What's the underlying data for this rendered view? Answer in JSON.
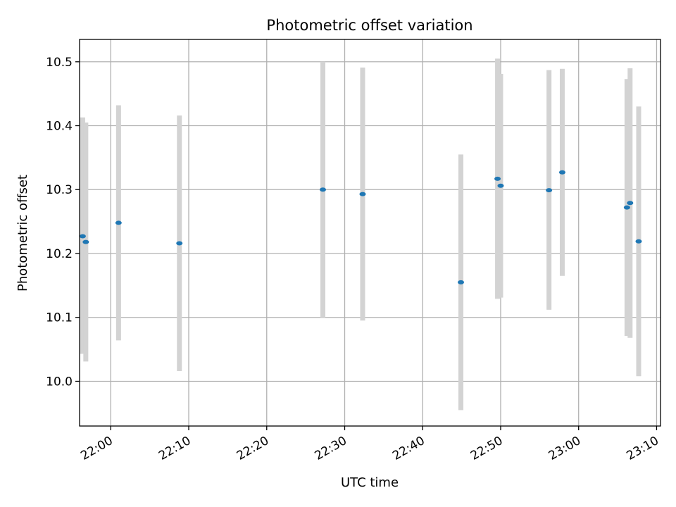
{
  "chart_data": {
    "type": "scatter",
    "title": "Photometric offset variation",
    "xlabel": "UTC time",
    "ylabel": "Photometric offset",
    "grid": true,
    "colors": {
      "marker": "#1f77b4",
      "errorbar": "#d3d3d3",
      "grid": "#b0b0b0"
    },
    "xlim": [
      "21:56.0",
      "23:10.5"
    ],
    "ylim": [
      9.93,
      10.535
    ],
    "x_ticks": [
      "22:00",
      "22:10",
      "22:20",
      "22:30",
      "22:40",
      "22:50",
      "23:00",
      "23:10"
    ],
    "y_ticks": [
      "10.0",
      "10.1",
      "10.2",
      "10.3",
      "10.4",
      "10.5"
    ],
    "points": [
      {
        "time": "21:56.4",
        "value": 10.227,
        "lower": 10.043,
        "upper": 10.413
      },
      {
        "time": "21:56.8",
        "value": 10.218,
        "lower": 10.031,
        "upper": 10.405
      },
      {
        "time": "22:01.0",
        "value": 10.248,
        "lower": 10.064,
        "upper": 10.432
      },
      {
        "time": "22:08.8",
        "value": 10.216,
        "lower": 10.016,
        "upper": 10.416
      },
      {
        "time": "22:27.2",
        "value": 10.3,
        "lower": 10.1,
        "upper": 10.5
      },
      {
        "time": "22:32.3",
        "value": 10.293,
        "lower": 10.095,
        "upper": 10.491
      },
      {
        "time": "22:44.9",
        "value": 10.155,
        "lower": 9.955,
        "upper": 10.355
      },
      {
        "time": "22:49.6",
        "value": 10.317,
        "lower": 10.129,
        "upper": 10.505
      },
      {
        "time": "22:50.0",
        "value": 10.306,
        "lower": 10.131,
        "upper": 10.481
      },
      {
        "time": "22:56.2",
        "value": 10.299,
        "lower": 10.112,
        "upper": 10.487
      },
      {
        "time": "22:57.9",
        "value": 10.327,
        "lower": 10.165,
        "upper": 10.489
      },
      {
        "time": "23:06.2",
        "value": 10.272,
        "lower": 10.071,
        "upper": 10.473
      },
      {
        "time": "23:06.6",
        "value": 10.279,
        "lower": 10.068,
        "upper": 10.49
      },
      {
        "time": "23:07.7",
        "value": 10.219,
        "lower": 10.008,
        "upper": 10.43
      }
    ]
  }
}
